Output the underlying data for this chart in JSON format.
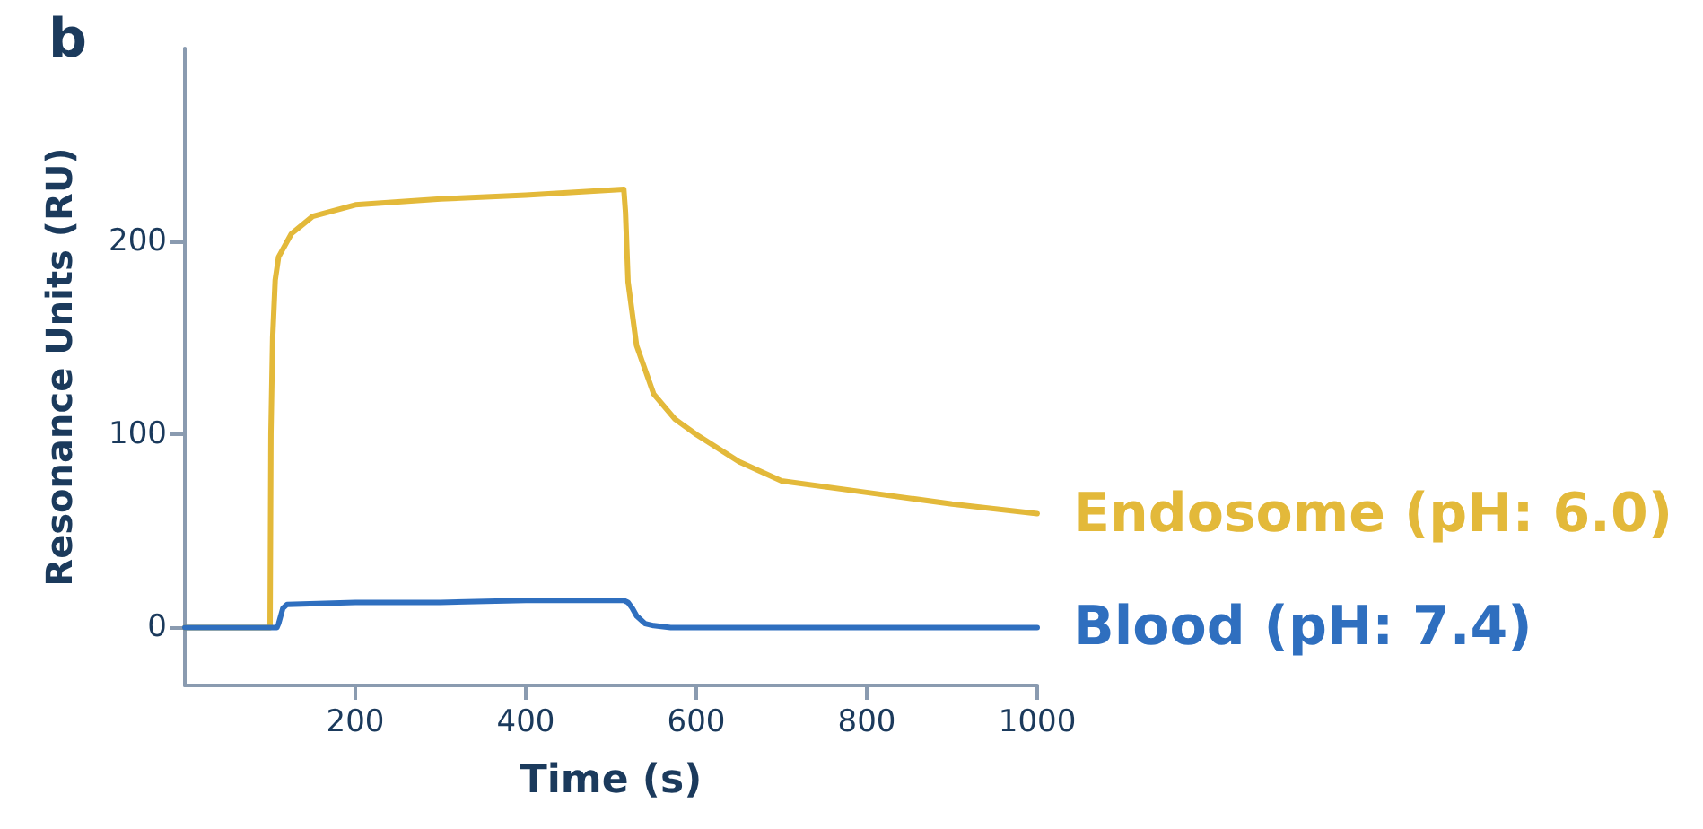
{
  "chart_data": {
    "type": "line",
    "title": "b",
    "xlabel": "Time (s)",
    "ylabel": "Resonance Units (RU)",
    "xlim": [
      0,
      1000
    ],
    "ylim": [
      -30,
      300
    ],
    "xticks": [
      200,
      400,
      600,
      800,
      1000
    ],
    "yticks": [
      0,
      100,
      200
    ],
    "grid": false,
    "legend": false,
    "marker": "none",
    "line_style": "solid",
    "series": [
      {
        "name": "Endosome (pH: 6.0)",
        "color": "#e3b93a",
        "x": [
          0,
          100,
          101,
          103,
          106,
          110,
          125,
          150,
          200,
          300,
          400,
          515,
          517,
          520,
          530,
          550,
          575,
          600,
          650,
          700,
          800,
          900,
          1000
        ],
        "values": [
          0,
          0,
          100,
          150,
          180,
          192,
          204,
          213,
          219,
          222,
          224,
          227,
          215,
          179,
          146,
          121,
          108,
          100,
          86,
          76,
          70,
          64,
          59
        ]
      },
      {
        "name": "Blood (pH: 7.4)",
        "color": "#2f6fbf",
        "x": [
          0,
          108,
          110,
          115,
          120,
          200,
          300,
          400,
          500,
          515,
          520,
          525,
          530,
          540,
          550,
          570,
          600,
          800,
          1000
        ],
        "values": [
          0,
          0,
          2,
          10,
          12,
          13,
          13,
          14,
          14,
          14,
          13,
          10,
          6,
          2,
          1,
          0,
          0,
          0,
          0
        ]
      }
    ]
  }
}
